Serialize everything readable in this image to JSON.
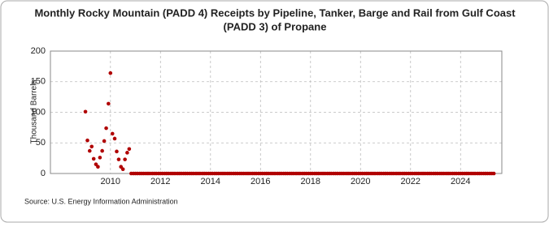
{
  "chart_data": {
    "type": "scatter",
    "title": [
      "Monthly Rocky Mountain (PADD 4) Receipts by Pipeline, Tanker, Barge and Rail from Gulf Coast",
      "(PADD 3) of Propane"
    ],
    "y_label": "Thousand Barrels",
    "source": "Source: U.S. Energy Information Administration",
    "xlim": [
      2007.6,
      2025.65
    ],
    "ylim": [
      0,
      200
    ],
    "xticks": [
      2010,
      2012,
      2014,
      2016,
      2018,
      2020,
      2022,
      2024
    ],
    "yticks": [
      0,
      50,
      100,
      150,
      200
    ],
    "grid": true,
    "series": [
      {
        "color": "#b00000",
        "x": [
          2009,
          2009.08,
          2009.17,
          2009.25,
          2009.33,
          2009.42,
          2009.5,
          2009.58,
          2009.67,
          2009.75,
          2009.83,
          2009.92,
          2010,
          2010.08,
          2010.17,
          2010.25,
          2010.33,
          2010.42,
          2010.5,
          2010.58,
          2010.67,
          2010.75,
          2010.83,
          2010.92,
          2011,
          2011.08,
          2011.17,
          2011.25,
          2011.33,
          2011.42,
          2011.5,
          2011.58,
          2011.67,
          2011.75,
          2011.83,
          2011.92,
          2012,
          2012.08,
          2012.17,
          2012.25,
          2012.33,
          2012.42,
          2012.5,
          2012.58,
          2012.67,
          2012.75,
          2012.83,
          2012.92,
          2013,
          2013.08,
          2013.17,
          2013.25,
          2013.33,
          2013.42,
          2013.5,
          2013.58,
          2013.67,
          2013.75,
          2013.83,
          2013.92,
          2014,
          2014.08,
          2014.17,
          2014.25,
          2014.33,
          2014.42,
          2014.5,
          2014.58,
          2014.67,
          2014.75,
          2014.83,
          2014.92,
          2015,
          2015.08,
          2015.17,
          2015.25,
          2015.33,
          2015.42,
          2015.5,
          2015.58,
          2015.67,
          2015.75,
          2015.83,
          2015.92,
          2016,
          2016.08,
          2016.17,
          2016.25,
          2016.33,
          2016.42,
          2016.5,
          2016.58,
          2016.67,
          2016.75,
          2016.83,
          2016.92,
          2017,
          2017.08,
          2017.17,
          2017.25,
          2017.33,
          2017.42,
          2017.5,
          2017.58,
          2017.67,
          2017.75,
          2017.83,
          2017.92,
          2018,
          2018.08,
          2018.17,
          2018.25,
          2018.33,
          2018.42,
          2018.5,
          2018.58,
          2018.67,
          2018.75,
          2018.83,
          2018.92,
          2019,
          2019.08,
          2019.17,
          2019.25,
          2019.33,
          2019.42,
          2019.5,
          2019.58,
          2019.67,
          2019.75,
          2019.83,
          2019.92,
          2020,
          2020.08,
          2020.17,
          2020.25,
          2020.33,
          2020.42,
          2020.5,
          2020.58,
          2020.67,
          2020.75,
          2020.83,
          2020.92,
          2021,
          2021.08,
          2021.17,
          2021.25,
          2021.33,
          2021.42,
          2021.5,
          2021.58,
          2021.67,
          2021.75,
          2021.83,
          2021.92,
          2022,
          2022.08,
          2022.17,
          2022.25,
          2022.33,
          2022.42,
          2022.5,
          2022.58,
          2022.67,
          2022.75,
          2022.83,
          2022.92,
          2023,
          2023.08,
          2023.17,
          2023.25,
          2023.33,
          2023.42,
          2023.5,
          2023.58,
          2023.67,
          2023.75,
          2023.83,
          2023.92,
          2024,
          2024.08,
          2024.17,
          2024.25,
          2024.33,
          2024.42,
          2024.5,
          2024.58,
          2024.67,
          2024.75,
          2024.83,
          2024.92,
          2025,
          2025.08,
          2025.17,
          2025.25,
          2025.33
        ],
        "values": [
          101,
          54,
          37,
          44,
          24,
          15,
          11,
          26,
          37,
          53,
          74,
          114,
          164,
          65,
          57,
          36,
          23,
          11,
          7,
          23,
          34,
          40,
          0,
          0,
          0,
          0,
          0,
          0,
          0,
          0,
          0,
          0,
          0,
          0,
          0,
          0,
          0,
          0,
          0,
          0,
          0,
          0,
          0,
          0,
          0,
          0,
          0,
          0,
          0,
          0,
          0,
          0,
          0,
          0,
          0,
          0,
          0,
          0,
          0,
          0,
          0,
          0,
          0,
          0,
          0,
          0,
          0,
          0,
          0,
          0,
          0,
          0,
          0,
          0,
          0,
          0,
          0,
          0,
          0,
          0,
          0,
          0,
          0,
          0,
          0,
          0,
          0,
          0,
          0,
          0,
          0,
          0,
          0,
          0,
          0,
          0,
          0,
          0,
          0,
          0,
          0,
          0,
          0,
          0,
          0,
          0,
          0,
          0,
          0,
          0,
          0,
          0,
          0,
          0,
          0,
          0,
          0,
          0,
          0,
          0,
          0,
          0,
          0,
          0,
          0,
          0,
          0,
          0,
          0,
          0,
          0,
          0,
          0,
          0,
          0,
          0,
          0,
          0,
          0,
          0,
          0,
          0,
          0,
          0,
          0,
          0,
          0,
          0,
          0,
          0,
          0,
          0,
          0,
          0,
          0,
          0,
          0,
          0,
          0,
          0,
          0,
          0,
          0,
          0,
          0,
          0,
          0,
          0,
          0,
          0,
          0,
          0,
          0,
          0,
          0,
          0,
          0,
          0,
          0,
          0,
          0,
          0,
          0,
          0,
          0,
          0,
          0,
          0,
          0,
          0,
          0,
          0,
          0,
          0,
          0,
          0,
          0
        ]
      }
    ]
  }
}
